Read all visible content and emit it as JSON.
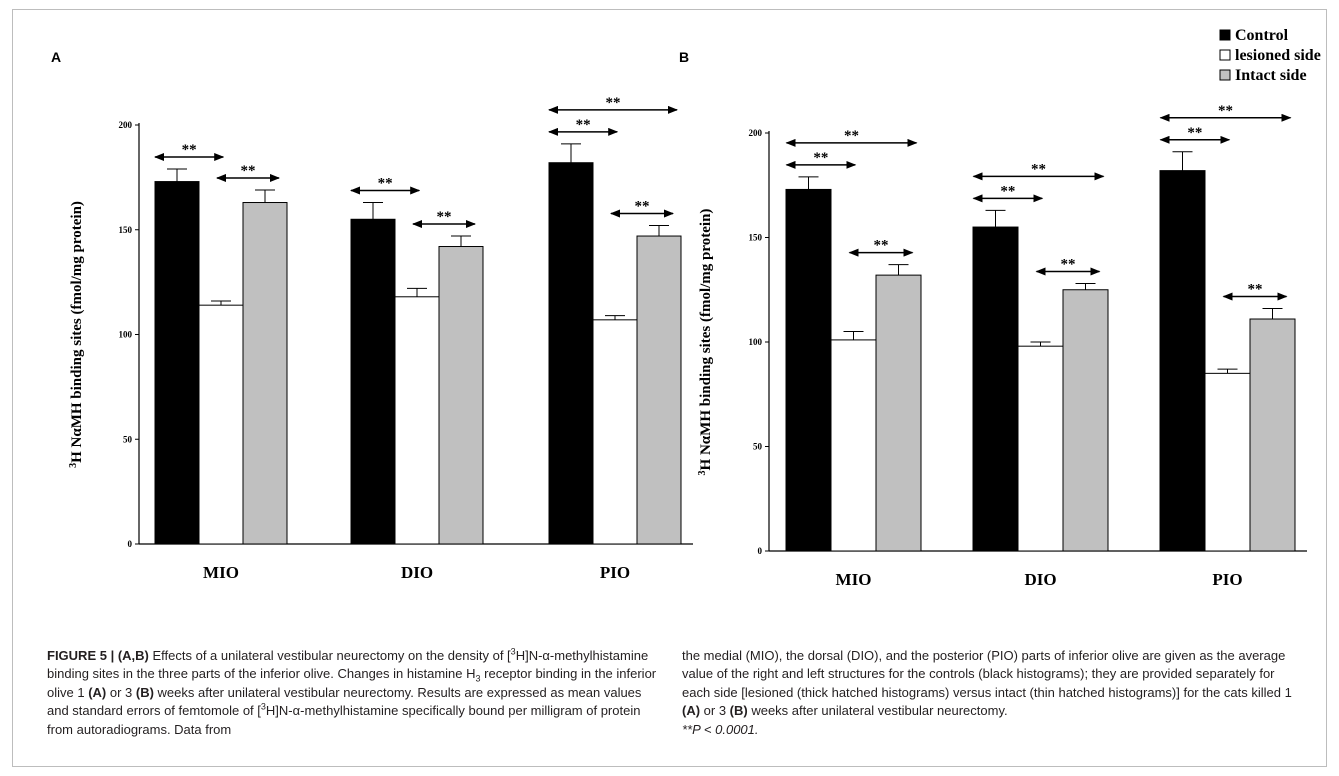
{
  "figure": {
    "panels": [
      {
        "letter": "A",
        "ylabel_sup": "3",
        "ylabel_main": "H NαMH binding sites (fmol/mg protein)",
        "significance_label": "**"
      },
      {
        "letter": "B",
        "ylabel_sup": "3",
        "ylabel_main": "H NαMH binding sites (fmol/mg protein)",
        "significance_label": "**"
      }
    ],
    "legend": [
      {
        "label": "Control",
        "color": "#000000"
      },
      {
        "label": "lesioned side",
        "color": "#ffffff"
      },
      {
        "label": "Intact side",
        "color": "#c0c0c0"
      }
    ]
  },
  "chart_data": [
    {
      "type": "bar",
      "title": "A",
      "xlabel": "",
      "ylabel": "3H NαMH binding sites (fmol/mg protein)",
      "ylim": [
        0,
        200
      ],
      "yticks": [
        0,
        50,
        100,
        150,
        200
      ],
      "categories": [
        "MIO",
        "DIO",
        "PIO"
      ],
      "series": [
        {
          "name": "Control",
          "color": "#000000",
          "values": [
            173,
            155,
            182
          ],
          "errors": [
            6,
            8,
            9
          ]
        },
        {
          "name": "lesioned side",
          "color": "#ffffff",
          "values": [
            114,
            118,
            107
          ],
          "errors": [
            2,
            4,
            2
          ]
        },
        {
          "name": "Intact side",
          "color": "#c0c0c0",
          "values": [
            163,
            142,
            147
          ],
          "errors": [
            6,
            5,
            5
          ]
        }
      ],
      "significance": [
        {
          "category": "MIO",
          "from": "Control",
          "to": "lesioned side",
          "label": "**"
        },
        {
          "category": "MIO",
          "from": "lesioned side",
          "to": "Intact side",
          "label": "**"
        },
        {
          "category": "DIO",
          "from": "Control",
          "to": "lesioned side",
          "label": "**"
        },
        {
          "category": "DIO",
          "from": "lesioned side",
          "to": "Intact side",
          "label": "**"
        },
        {
          "category": "PIO",
          "from": "Control",
          "to": "lesioned side",
          "label": "**"
        },
        {
          "category": "PIO",
          "from": "Control",
          "to": "Intact side",
          "label": "**"
        },
        {
          "category": "PIO",
          "from": "lesioned side",
          "to": "Intact side",
          "label": "**"
        }
      ],
      "grid": false,
      "legend": "none"
    },
    {
      "type": "bar",
      "title": "B",
      "xlabel": "",
      "ylabel": "3H NαMH binding sites (fmol/mg protein)",
      "ylim": [
        0,
        200
      ],
      "yticks": [
        0,
        50,
        100,
        150,
        200
      ],
      "categories": [
        "MIO",
        "DIO",
        "PIO"
      ],
      "series": [
        {
          "name": "Control",
          "color": "#000000",
          "values": [
            173,
            155,
            182
          ],
          "errors": [
            6,
            8,
            9
          ]
        },
        {
          "name": "lesioned side",
          "color": "#ffffff",
          "values": [
            101,
            98,
            85
          ],
          "errors": [
            4,
            2,
            2
          ]
        },
        {
          "name": "Intact side",
          "color": "#c0c0c0",
          "values": [
            132,
            125,
            111
          ],
          "errors": [
            5,
            3,
            5
          ]
        }
      ],
      "significance": [
        {
          "category": "MIO",
          "from": "Control",
          "to": "lesioned side",
          "label": "**"
        },
        {
          "category": "MIO",
          "from": "Control",
          "to": "Intact side",
          "label": "**"
        },
        {
          "category": "MIO",
          "from": "lesioned side",
          "to": "Intact side",
          "label": "**"
        },
        {
          "category": "DIO",
          "from": "Control",
          "to": "lesioned side",
          "label": "**"
        },
        {
          "category": "DIO",
          "from": "Control",
          "to": "Intact side",
          "label": "**"
        },
        {
          "category": "DIO",
          "from": "lesioned side",
          "to": "Intact side",
          "label": "**"
        },
        {
          "category": "PIO",
          "from": "Control",
          "to": "lesioned side",
          "label": "**"
        },
        {
          "category": "PIO",
          "from": "Control",
          "to": "Intact side",
          "label": "**"
        },
        {
          "category": "PIO",
          "from": "lesioned side",
          "to": "Intact side",
          "label": "**"
        }
      ],
      "grid": false,
      "legend": "top-right"
    }
  ],
  "caption": {
    "lead": "FIGURE 5 | (A,B)",
    "left_text_1": " Effects of a unilateral vestibular neurectomy on the density of [",
    "left_sup_1": "3",
    "left_text_2": "H]N-α-methylhistamine binding sites in the three parts of the inferior olive. Changes in histamine H",
    "left_sub_1": "3",
    "left_text_3": " receptor binding in the inferior olive 1 ",
    "ref_a": "(A)",
    "left_text_4": " or 3 ",
    "ref_b": "(B)",
    "left_text_5": " weeks after unilateral vestibular neurectomy. Results are expressed as mean values and standard errors of femtomole of [",
    "left_sup_2": "3",
    "left_text_6": "H]N-α-methylhistamine specifically bound per milligram of protein from autoradiograms. Data from",
    "right_text_1": "the medial (MIO), the dorsal (DIO), and the posterior (PIO) parts of inferior olive are given as the average value of the right and left structures for the controls (black histograms); they are provided separately for each side [lesioned (thick hatched histograms) versus intact (thin hatched histograms)] for the cats killed 1 ",
    "right_ref_a": "(A)",
    "right_text_2": " or 3 ",
    "right_ref_b": "(B)",
    "right_text_3": " weeks after unilateral vestibular neurectomy.",
    "right_text_4": "**P < 0.0001."
  }
}
